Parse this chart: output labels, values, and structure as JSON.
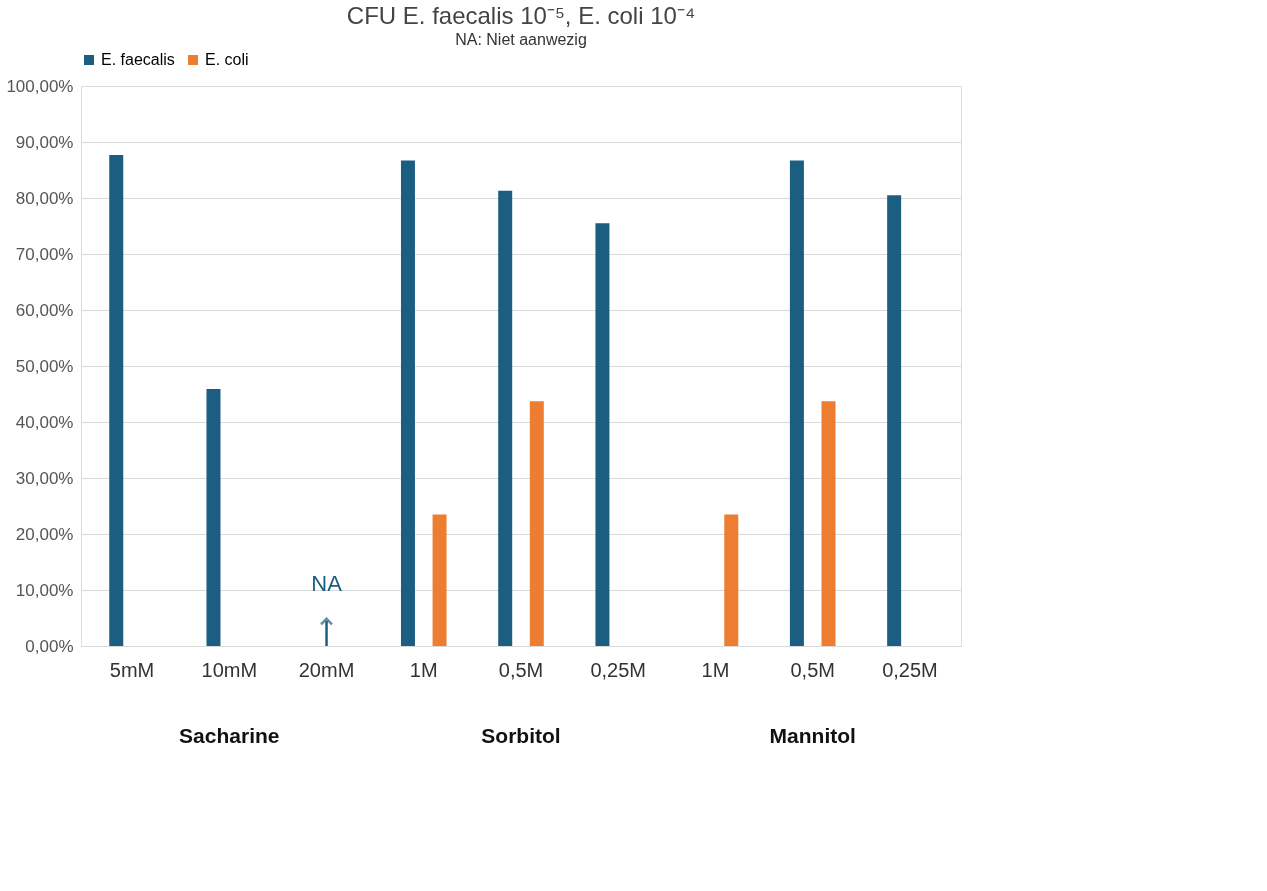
{
  "chart_data": {
    "type": "bar",
    "title": "CFU E. faecalis 10⁻⁵, E. coli 10⁻⁴",
    "subtitle": "NA: Niet aanwezig",
    "categories": [
      "5mM",
      "10mM",
      "20mM",
      "1M",
      "0,5M",
      "0,25M",
      "1M",
      "0,5M",
      "0,25M"
    ],
    "series": [
      {
        "name": "E. faecalis",
        "color": "#1b5e82",
        "values": [
          87.7,
          45.9,
          null,
          86.7,
          81.3,
          75.5,
          null,
          86.7,
          80.5
        ]
      },
      {
        "name": "E. coli",
        "color": "#ed7d31",
        "values": [
          null,
          null,
          null,
          23.5,
          43.7,
          null,
          23.5,
          43.7,
          null
        ]
      }
    ],
    "ylim": [
      0,
      100
    ],
    "yticks": [
      {
        "value": 0,
        "label": "0,00%"
      },
      {
        "value": 10,
        "label": "10,00%"
      },
      {
        "value": 20,
        "label": "20,00%"
      },
      {
        "value": 30,
        "label": "30,00%"
      },
      {
        "value": 40,
        "label": "40,00%"
      },
      {
        "value": 50,
        "label": "50,00%"
      },
      {
        "value": 60,
        "label": "60,00%"
      },
      {
        "value": 70,
        "label": "70,00%"
      },
      {
        "value": 80,
        "label": "80,00%"
      },
      {
        "value": 90,
        "label": "90,00%"
      },
      {
        "value": 100,
        "label": "100,00%"
      }
    ],
    "grid": "y",
    "legend": "top",
    "annotations": [
      "Sacharine",
      "Sorbitol",
      "Mannitol",
      "NA"
    ]
  }
}
